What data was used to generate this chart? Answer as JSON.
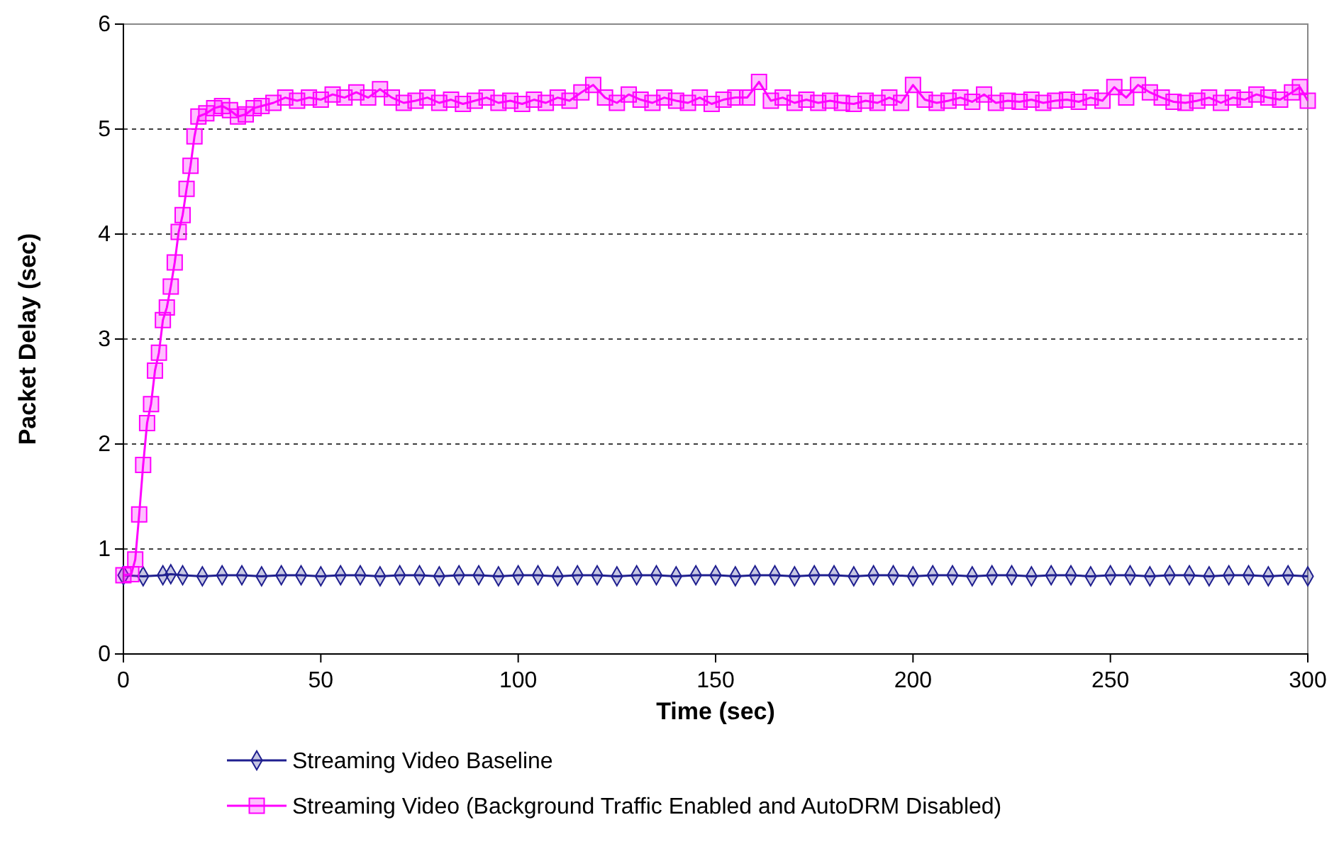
{
  "chart_data": {
    "type": "line",
    "xlabel": "Time (sec)",
    "ylabel": "Packet Delay (sec)",
    "xlim": [
      0,
      300
    ],
    "xticks": [
      0,
      50,
      100,
      150,
      200,
      250,
      300
    ],
    "ylim": [
      0,
      6
    ],
    "yticks": [
      0,
      1,
      2,
      3,
      4,
      5,
      6
    ],
    "grid": "y",
    "legend": "bottom",
    "series": [
      {
        "name": "Streaming Video Baseline",
        "color": "#1f1f8f",
        "marker": "diamond",
        "x": [
          0,
          5,
          10,
          12,
          15,
          20,
          25,
          30,
          35,
          40,
          45,
          50,
          55,
          60,
          65,
          70,
          75,
          80,
          85,
          90,
          95,
          100,
          105,
          110,
          115,
          120,
          125,
          130,
          135,
          140,
          145,
          150,
          155,
          160,
          165,
          170,
          175,
          180,
          185,
          190,
          195,
          200,
          205,
          210,
          215,
          220,
          225,
          230,
          235,
          240,
          245,
          250,
          255,
          260,
          265,
          270,
          275,
          280,
          285,
          290,
          295,
          300
        ],
        "values": [
          0.75,
          0.74,
          0.75,
          0.76,
          0.75,
          0.74,
          0.75,
          0.75,
          0.74,
          0.75,
          0.75,
          0.74,
          0.75,
          0.75,
          0.74,
          0.75,
          0.75,
          0.74,
          0.75,
          0.75,
          0.74,
          0.75,
          0.75,
          0.74,
          0.75,
          0.75,
          0.74,
          0.75,
          0.75,
          0.74,
          0.75,
          0.75,
          0.74,
          0.75,
          0.75,
          0.74,
          0.75,
          0.75,
          0.74,
          0.75,
          0.75,
          0.74,
          0.75,
          0.75,
          0.74,
          0.75,
          0.75,
          0.74,
          0.75,
          0.75,
          0.74,
          0.75,
          0.75,
          0.74,
          0.75,
          0.75,
          0.74,
          0.75,
          0.75,
          0.74,
          0.75,
          0.74
        ]
      },
      {
        "name": "Streaming Video (Background Traffic Enabled and AutoDRM Disabled)",
        "color": "#ff00ff",
        "marker": "square",
        "x": [
          0,
          2,
          3,
          4,
          5,
          6,
          7,
          8,
          9,
          10,
          11,
          12,
          13,
          14,
          15,
          16,
          17,
          18,
          19,
          21,
          23,
          25,
          27,
          29,
          31,
          33,
          35,
          38,
          41,
          44,
          47,
          50,
          53,
          56,
          59,
          62,
          65,
          68,
          71,
          74,
          77,
          80,
          83,
          86,
          89,
          92,
          95,
          98,
          101,
          104,
          107,
          110,
          113,
          116,
          119,
          122,
          125,
          128,
          131,
          134,
          137,
          140,
          143,
          146,
          149,
          152,
          155,
          158,
          161,
          164,
          167,
          170,
          173,
          176,
          179,
          182,
          185,
          188,
          191,
          194,
          197,
          200,
          203,
          206,
          209,
          212,
          215,
          218,
          221,
          224,
          227,
          230,
          233,
          236,
          239,
          242,
          245,
          248,
          251,
          254,
          257,
          260,
          263,
          266,
          269,
          272,
          275,
          278,
          281,
          284,
          287,
          290,
          293,
          296,
          298,
          300
        ],
        "values": [
          0.75,
          0.76,
          0.9,
          1.33,
          1.8,
          2.2,
          2.38,
          2.7,
          2.87,
          3.18,
          3.3,
          3.5,
          3.73,
          4.02,
          4.18,
          4.43,
          4.65,
          4.93,
          5.12,
          5.15,
          5.2,
          5.22,
          5.18,
          5.12,
          5.14,
          5.2,
          5.22,
          5.25,
          5.3,
          5.27,
          5.3,
          5.28,
          5.33,
          5.3,
          5.35,
          5.3,
          5.38,
          5.3,
          5.25,
          5.27,
          5.3,
          5.25,
          5.28,
          5.24,
          5.27,
          5.3,
          5.25,
          5.27,
          5.24,
          5.28,
          5.25,
          5.3,
          5.27,
          5.35,
          5.42,
          5.3,
          5.25,
          5.33,
          5.28,
          5.25,
          5.3,
          5.27,
          5.25,
          5.3,
          5.24,
          5.28,
          5.3,
          5.3,
          5.45,
          5.27,
          5.3,
          5.25,
          5.28,
          5.25,
          5.27,
          5.25,
          5.24,
          5.27,
          5.25,
          5.3,
          5.25,
          5.42,
          5.28,
          5.25,
          5.27,
          5.3,
          5.26,
          5.33,
          5.25,
          5.27,
          5.26,
          5.28,
          5.25,
          5.27,
          5.28,
          5.26,
          5.3,
          5.27,
          5.4,
          5.3,
          5.42,
          5.35,
          5.3,
          5.26,
          5.25,
          5.27,
          5.3,
          5.25,
          5.3,
          5.28,
          5.33,
          5.3,
          5.28,
          5.35,
          5.4,
          5.27
        ]
      }
    ]
  }
}
